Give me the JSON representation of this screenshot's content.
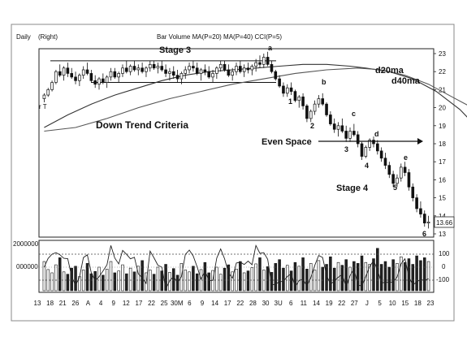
{
  "header": {
    "period": "Daily",
    "scale": "(Right)",
    "studies": "Bar Volume MA(P=20)  MA(P=40)  CCI(P=5)"
  },
  "annotations": {
    "stage3": "Stage 3",
    "stage4": "Stage 4",
    "down_trend": "Down Trend Criteria",
    "even_space": "Even Space",
    "ma20": "d20ma",
    "ma40": "d40ma",
    "swing_letters": [
      "a",
      "b",
      "c",
      "d",
      "e"
    ],
    "swing_numbers": [
      "1",
      "2",
      "3",
      "4",
      "5",
      "6"
    ],
    "left_marks": "r T"
  },
  "chart_data": {
    "type": "candlestick",
    "y_ticks": [
      "23",
      "22",
      "21",
      "20",
      "19",
      "18",
      "17",
      "16",
      "15",
      "14",
      "13"
    ],
    "last_price_label": "13.66",
    "ylim": [
      13,
      23
    ],
    "x_tick_labels": [
      "13",
      "18",
      "21",
      "26",
      "A",
      "4",
      "9",
      "12",
      "17",
      "22",
      "25",
      "30M",
      "6",
      "9",
      "14",
      "17",
      "22",
      "28",
      "30",
      "3U",
      "6",
      "11",
      "14",
      "19",
      "22",
      "27",
      "J",
      "5",
      "10",
      "15",
      "18",
      "23"
    ],
    "ma20": [
      [
        0,
        18.9
      ],
      [
        6,
        19.6
      ],
      [
        12,
        20.2
      ],
      [
        18,
        20.7
      ],
      [
        24,
        21.1
      ],
      [
        30,
        21.5
      ],
      [
        36,
        21.8
      ],
      [
        42,
        22.0
      ],
      [
        48,
        22.1
      ],
      [
        54,
        22.2
      ],
      [
        60,
        22.3
      ],
      [
        66,
        22.4
      ],
      [
        72,
        22.4
      ],
      [
        78,
        22.3
      ],
      [
        82,
        22.2
      ],
      [
        88,
        22.0
      ],
      [
        94,
        21.6
      ],
      [
        100,
        20.9
      ],
      [
        106,
        19.9
      ],
      [
        110,
        19.0
      ],
      [
        114,
        18.0
      ]
    ],
    "ma40": [
      [
        0,
        18.7
      ],
      [
        8,
        18.9
      ],
      [
        16,
        19.4
      ],
      [
        24,
        20.0
      ],
      [
        32,
        20.5
      ],
      [
        40,
        20.9
      ],
      [
        48,
        21.3
      ],
      [
        56,
        21.6
      ],
      [
        64,
        21.9
      ],
      [
        72,
        22.1
      ],
      [
        80,
        22.2
      ],
      [
        86,
        22.1
      ],
      [
        92,
        21.8
      ],
      [
        98,
        21.3
      ],
      [
        104,
        20.6
      ],
      [
        110,
        19.9
      ],
      [
        116,
        19.1
      ],
      [
        118,
        18.8
      ]
    ],
    "resistance_level": 22.6,
    "support_level": 21.4,
    "even_space_level": 18.2,
    "candles": [
      [
        0,
        20.5,
        20.8,
        20.3,
        20.7
      ],
      [
        1,
        20.7,
        21.1,
        20.6,
        21.0
      ],
      [
        2,
        21.0,
        21.5,
        20.9,
        21.4
      ],
      [
        3,
        21.4,
        22.1,
        21.3,
        22.0
      ],
      [
        4,
        22.0,
        22.4,
        21.7,
        21.8
      ],
      [
        5,
        21.8,
        22.3,
        21.5,
        22.2
      ],
      [
        6,
        22.2,
        22.5,
        21.7,
        21.9
      ],
      [
        7,
        21.9,
        22.2,
        21.6,
        21.7
      ],
      [
        8,
        21.7,
        22.0,
        21.3,
        21.5
      ],
      [
        9,
        21.5,
        21.9,
        21.2,
        21.8
      ],
      [
        10,
        21.8,
        22.3,
        21.6,
        22.1
      ],
      [
        11,
        22.1,
        22.5,
        21.8,
        21.9
      ],
      [
        12,
        21.9,
        22.1,
        21.4,
        21.5
      ],
      [
        13,
        21.5,
        21.8,
        21.1,
        21.3
      ],
      [
        14,
        21.3,
        21.7,
        21.0,
        21.6
      ],
      [
        15,
        21.6,
        21.9,
        21.3,
        21.4
      ],
      [
        16,
        21.4,
        21.8,
        21.1,
        21.7
      ],
      [
        17,
        21.7,
        22.2,
        21.5,
        22.0
      ],
      [
        18,
        22.0,
        22.2,
        21.6,
        21.7
      ],
      [
        19,
        21.7,
        22.0,
        21.4,
        21.9
      ],
      [
        20,
        21.9,
        22.4,
        21.7,
        22.2
      ],
      [
        21,
        22.2,
        22.6,
        21.9,
        22.0
      ],
      [
        22,
        22.0,
        22.4,
        21.8,
        22.3
      ],
      [
        23,
        22.3,
        22.6,
        22.0,
        22.1
      ],
      [
        24,
        22.1,
        22.4,
        21.8,
        22.2
      ],
      [
        25,
        22.2,
        22.5,
        21.9,
        22.0
      ],
      [
        26,
        22.0,
        22.3,
        21.7,
        22.2
      ],
      [
        27,
        22.2,
        22.6,
        22.0,
        22.4
      ],
      [
        28,
        22.4,
        22.6,
        22.1,
        22.2
      ],
      [
        29,
        22.2,
        22.5,
        21.9,
        22.3
      ],
      [
        30,
        22.3,
        22.6,
        22.0,
        22.1
      ],
      [
        31,
        22.1,
        22.4,
        21.7,
        21.9
      ],
      [
        32,
        21.9,
        22.2,
        21.5,
        22.0
      ],
      [
        33,
        22.0,
        22.3,
        21.6,
        21.8
      ],
      [
        34,
        21.8,
        22.1,
        21.4,
        21.6
      ],
      [
        35,
        21.6,
        22.0,
        21.3,
        21.9
      ],
      [
        36,
        21.9,
        22.3,
        21.6,
        22.1
      ],
      [
        37,
        22.1,
        22.5,
        21.9,
        22.3
      ],
      [
        38,
        22.3,
        22.6,
        22.0,
        22.2
      ],
      [
        39,
        22.2,
        22.5,
        21.8,
        21.9
      ],
      [
        40,
        21.9,
        22.2,
        21.5,
        22.1
      ],
      [
        41,
        22.1,
        22.4,
        21.8,
        22.0
      ],
      [
        42,
        22.0,
        22.3,
        21.6,
        21.7
      ],
      [
        43,
        21.7,
        22.1,
        21.4,
        21.9
      ],
      [
        44,
        21.9,
        22.3,
        21.6,
        22.2
      ],
      [
        45,
        22.2,
        22.6,
        22.0,
        22.4
      ],
      [
        46,
        22.4,
        22.6,
        22.0,
        22.1
      ],
      [
        47,
        22.1,
        22.4,
        21.7,
        21.8
      ],
      [
        48,
        21.8,
        22.2,
        21.5,
        22.0
      ],
      [
        49,
        22.0,
        22.5,
        21.8,
        22.3
      ],
      [
        50,
        22.3,
        22.6,
        21.9,
        22.0
      ],
      [
        51,
        22.0,
        22.4,
        21.7,
        22.2
      ],
      [
        52,
        22.2,
        22.5,
        21.9,
        22.1
      ],
      [
        53,
        22.1,
        22.4,
        21.8,
        22.3
      ],
      [
        54,
        22.3,
        22.7,
        22.0,
        22.5
      ],
      [
        55,
        22.5,
        22.9,
        22.2,
        22.4
      ],
      [
        56,
        22.4,
        23.0,
        22.2,
        22.8
      ],
      [
        57,
        22.8,
        23.1,
        22.3,
        22.4
      ],
      [
        58,
        22.4,
        22.6,
        21.9,
        22.0
      ],
      [
        59,
        22.0,
        22.1,
        21.5,
        21.6
      ],
      [
        60,
        21.6,
        21.8,
        21.1,
        21.2
      ],
      [
        61,
        21.2,
        21.4,
        20.6,
        20.8
      ],
      [
        62,
        20.8,
        21.3,
        20.6,
        21.1
      ],
      [
        63,
        21.1,
        21.4,
        20.7,
        20.9
      ],
      [
        64,
        20.9,
        21.0,
        20.3,
        20.4
      ],
      [
        65,
        20.4,
        20.7,
        20.0,
        20.6
      ],
      [
        66,
        20.6,
        20.8,
        19.9,
        20.1
      ],
      [
        67,
        20.1,
        20.2,
        19.2,
        19.4
      ],
      [
        68,
        19.4,
        19.9,
        19.2,
        19.8
      ],
      [
        69,
        19.8,
        20.4,
        19.6,
        20.2
      ],
      [
        70,
        20.2,
        20.7,
        20.0,
        20.5
      ],
      [
        71,
        20.5,
        20.8,
        20.1,
        20.2
      ],
      [
        72,
        20.2,
        20.3,
        19.5,
        19.6
      ],
      [
        73,
        19.6,
        19.8,
        19.0,
        19.1
      ],
      [
        74,
        19.1,
        19.4,
        18.6,
        18.8
      ],
      [
        75,
        18.8,
        19.2,
        18.4,
        19.0
      ],
      [
        76,
        19.0,
        19.4,
        18.6,
        18.7
      ],
      [
        77,
        18.7,
        19.0,
        18.1,
        18.3
      ],
      [
        78,
        18.3,
        18.9,
        18.1,
        18.7
      ],
      [
        79,
        18.7,
        19.1,
        18.4,
        18.5
      ],
      [
        80,
        18.5,
        18.7,
        17.8,
        18.0
      ],
      [
        81,
        18.0,
        18.1,
        17.1,
        17.3
      ],
      [
        82,
        17.3,
        17.9,
        17.2,
        17.8
      ],
      [
        83,
        17.8,
        18.3,
        17.6,
        18.2
      ],
      [
        84,
        18.2,
        18.4,
        17.8,
        18.0
      ],
      [
        85,
        18.0,
        18.2,
        17.4,
        17.6
      ],
      [
        86,
        17.6,
        17.8,
        17.0,
        17.2
      ],
      [
        87,
        17.2,
        17.5,
        16.6,
        16.8
      ],
      [
        88,
        16.8,
        17.0,
        16.1,
        16.3
      ],
      [
        89,
        16.3,
        16.5,
        15.6,
        15.8
      ],
      [
        90,
        15.8,
        16.3,
        15.6,
        16.1
      ],
      [
        91,
        16.1,
        16.9,
        15.9,
        16.7
      ],
      [
        92,
        16.7,
        17.0,
        16.2,
        16.4
      ],
      [
        93,
        16.4,
        16.6,
        15.4,
        15.6
      ],
      [
        94,
        15.6,
        15.8,
        14.8,
        15.0
      ],
      [
        95,
        15.0,
        15.2,
        14.2,
        14.4
      ],
      [
        96,
        14.4,
        14.8,
        13.9,
        14.1
      ],
      [
        97,
        14.1,
        14.3,
        13.4,
        13.6
      ],
      [
        98,
        13.6,
        14.0,
        13.3,
        13.66
      ]
    ],
    "volume": [
      62,
      45,
      38,
      55,
      70,
      40,
      35,
      48,
      52,
      30,
      44,
      58,
      36,
      41,
      50,
      33,
      46,
      62,
      38,
      42,
      55,
      36,
      48,
      40,
      52,
      64,
      38,
      44,
      35,
      50,
      42,
      56,
      39,
      47,
      33,
      58,
      44,
      40,
      52,
      36,
      45,
      60,
      38,
      43,
      50,
      35,
      48,
      55,
      40,
      46,
      62,
      38,
      42,
      49,
      57,
      70,
      44,
      51,
      39,
      58,
      66,
      48,
      54,
      42,
      60,
      52,
      70,
      46,
      58,
      44,
      64,
      50,
      56,
      72,
      48,
      60,
      54,
      66,
      50,
      62,
      58,
      74,
      60,
      56,
      68,
      90,
      56,
      62,
      50,
      66,
      58,
      72,
      60,
      68,
      56,
      74,
      64,
      70,
      62
    ],
    "cci_right_labels": [
      "100",
      "0",
      "-100"
    ],
    "volume_axis_labels": [
      "2000000",
      "000000"
    ]
  }
}
